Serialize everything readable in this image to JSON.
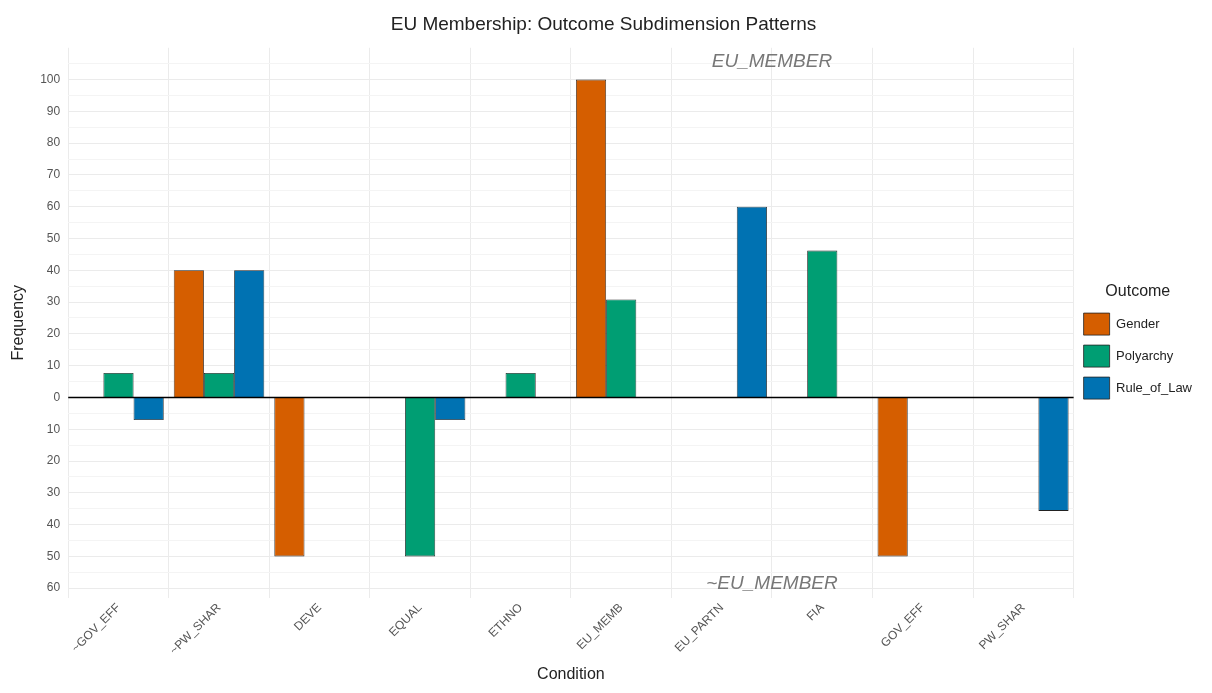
{
  "chart_data": {
    "type": "bar",
    "title": "EU Membership: Outcome Subdimension Patterns",
    "xlabel": "Condition",
    "ylabel": "Frequency",
    "legend_title": "Outcome",
    "legend": "right",
    "categories": [
      "~GOV_EFF",
      "~PW_SHAR",
      "DEVE",
      "EQUAL",
      "ETHNO",
      "EU_MEMB",
      "EU_PARTN",
      "FIA",
      "GOV_EFF",
      "PW_SHAR"
    ],
    "series": [
      {
        "name": "Gender",
        "color": "#d55e00",
        "values": [
          null,
          40,
          -50,
          null,
          null,
          100,
          null,
          null,
          -50,
          null
        ]
      },
      {
        "name": "Polyarchy",
        "color": "#009e73",
        "values": [
          7.7,
          7.7,
          null,
          -50,
          7.7,
          30.8,
          null,
          46.2,
          null,
          null
        ]
      },
      {
        "name": "Rule_of_Law",
        "color": "#0072b2",
        "values": [
          -7.1,
          40,
          null,
          -7.1,
          null,
          null,
          60,
          null,
          null,
          -35.7
        ]
      }
    ],
    "ylim": [
      -63,
      110
    ],
    "yticks": [
      {
        "value": -60,
        "label": "60"
      },
      {
        "value": -55,
        "label": null
      },
      {
        "value": -50,
        "label": "50"
      },
      {
        "value": -45,
        "label": null
      },
      {
        "value": -40,
        "label": "40"
      },
      {
        "value": -35,
        "label": null
      },
      {
        "value": -30,
        "label": "30"
      },
      {
        "value": -25,
        "label": null
      },
      {
        "value": -20,
        "label": "20"
      },
      {
        "value": -15,
        "label": null
      },
      {
        "value": -10,
        "label": "10"
      },
      {
        "value": -5,
        "label": null
      },
      0,
      {
        "value": 5,
        "label": null
      },
      10,
      {
        "value": 15,
        "label": null
      },
      20,
      {
        "value": 25,
        "label": null
      },
      30,
      {
        "value": 35,
        "label": null
      },
      40,
      {
        "value": 45,
        "label": null
      },
      50,
      {
        "value": 55,
        "label": null
      },
      60,
      {
        "value": 65,
        "label": null
      },
      70,
      {
        "value": 75,
        "label": null
      },
      80,
      {
        "value": 85,
        "label": null
      },
      90,
      {
        "value": 95,
        "label": null
      },
      100,
      {
        "value": 105,
        "label": null
      }
    ],
    "ref_lines": [
      {
        "axis": "y",
        "value": 0,
        "color": "#000000"
      }
    ],
    "annotations": [
      "EU_MEMBER",
      "~EU_MEMBER"
    ],
    "grid": true
  }
}
